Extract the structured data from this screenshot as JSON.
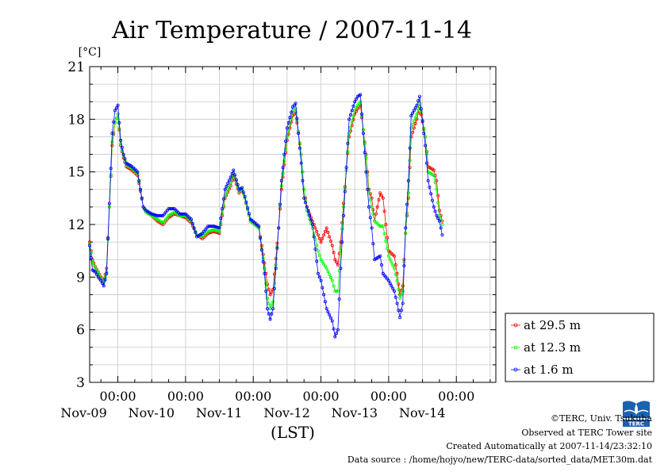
{
  "chart_data": {
    "type": "line",
    "title": "Air Temperature / 2007-11-14",
    "ylabel": "[°C]",
    "xlabel": "(LST)",
    "ylim": [
      3,
      21
    ],
    "yticks": [
      3,
      6,
      9,
      12,
      15,
      18,
      21
    ],
    "x_range_hours": [
      -10,
      134
    ],
    "x_ticks": [
      {
        "hour": 0,
        "time": "00:00",
        "date": "Nov-09"
      },
      {
        "hour": 24,
        "time": "00:00",
        "date": "Nov-10"
      },
      {
        "hour": 48,
        "time": "00:00",
        "date": "Nov-11"
      },
      {
        "hour": 72,
        "time": "00:00",
        "date": "Nov-12"
      },
      {
        "hour": 96,
        "time": "00:00",
        "date": "Nov-13"
      },
      {
        "hour": 120,
        "time": "00:00",
        "date": "Nov-14"
      }
    ],
    "grid": true,
    "legend_position": "right",
    "series": [
      {
        "name": "at 29.5 m",
        "color": "#ff0000",
        "points": [
          [
            -10,
            11.0
          ],
          [
            -9,
            10.0
          ],
          [
            -8,
            9.6
          ],
          [
            -7,
            9.3
          ],
          [
            -6,
            9.0
          ],
          [
            -5,
            8.8
          ],
          [
            -4,
            9.5
          ],
          [
            -3,
            13.0
          ],
          [
            -2,
            16.5
          ],
          [
            -1,
            17.8
          ],
          [
            0,
            18.3
          ],
          [
            1,
            16.5
          ],
          [
            2,
            15.8
          ],
          [
            3,
            15.3
          ],
          [
            5,
            15.1
          ],
          [
            7,
            14.8
          ],
          [
            9,
            13.0
          ],
          [
            10,
            12.7
          ],
          [
            12,
            12.5
          ],
          [
            14,
            12.2
          ],
          [
            16,
            12.0
          ],
          [
            18,
            12.4
          ],
          [
            20,
            12.6
          ],
          [
            22,
            12.5
          ],
          [
            24,
            12.4
          ],
          [
            26,
            12.1
          ],
          [
            28,
            11.4
          ],
          [
            30,
            11.2
          ],
          [
            32,
            11.5
          ],
          [
            34,
            11.6
          ],
          [
            36,
            11.5
          ],
          [
            38,
            13.5
          ],
          [
            40,
            14.2
          ],
          [
            41,
            14.8
          ],
          [
            43,
            13.8
          ],
          [
            44,
            14.0
          ],
          [
            45,
            13.5
          ],
          [
            47,
            12.2
          ],
          [
            50,
            11.8
          ],
          [
            52,
            9.8
          ],
          [
            53,
            8.6
          ],
          [
            54,
            8.0
          ],
          [
            55,
            8.3
          ],
          [
            57,
            11.8
          ],
          [
            58,
            14.0
          ],
          [
            60,
            16.8
          ],
          [
            62,
            18.2
          ],
          [
            63,
            18.4
          ],
          [
            65,
            16.0
          ],
          [
            66,
            14.0
          ],
          [
            67,
            13.0
          ],
          [
            69,
            12.2
          ],
          [
            71,
            11.4
          ],
          [
            72,
            11.0
          ],
          [
            74,
            11.8
          ],
          [
            76,
            10.8
          ],
          [
            77,
            10.0
          ],
          [
            78,
            9.7
          ],
          [
            79,
            11.0
          ],
          [
            80,
            13.2
          ],
          [
            82,
            17.0
          ],
          [
            84,
            18.3
          ],
          [
            85,
            18.6
          ],
          [
            86,
            18.8
          ],
          [
            88,
            16.0
          ],
          [
            89,
            14.0
          ],
          [
            90,
            13.5
          ],
          [
            91,
            12.2
          ],
          [
            93,
            13.8
          ],
          [
            94,
            13.5
          ],
          [
            96,
            10.5
          ],
          [
            98,
            10.2
          ],
          [
            99,
            9.2
          ],
          [
            100,
            8.0
          ],
          [
            101,
            8.5
          ],
          [
            102,
            11.5
          ],
          [
            103,
            13.5
          ],
          [
            104,
            17.0
          ],
          [
            106,
            18.0
          ],
          [
            107,
            18.7
          ],
          [
            109,
            17.0
          ],
          [
            110,
            15.3
          ],
          [
            112,
            15.1
          ],
          [
            113,
            14.5
          ],
          [
            114,
            12.8
          ],
          [
            115,
            12.2
          ]
        ]
      },
      {
        "name": "at 12.3 m",
        "color": "#00ff00",
        "points": [
          [
            -10,
            10.9
          ],
          [
            -9,
            9.9
          ],
          [
            -8,
            9.5
          ],
          [
            -7,
            9.2
          ],
          [
            -6,
            8.9
          ],
          [
            -5,
            8.7
          ],
          [
            -4,
            9.3
          ],
          [
            -3,
            13.0
          ],
          [
            -2,
            16.7
          ],
          [
            -1,
            17.8
          ],
          [
            0,
            18.3
          ],
          [
            1,
            16.6
          ],
          [
            2,
            15.9
          ],
          [
            3,
            15.4
          ],
          [
            5,
            15.2
          ],
          [
            7,
            14.9
          ],
          [
            9,
            13.0
          ],
          [
            10,
            12.7
          ],
          [
            12,
            12.5
          ],
          [
            14,
            12.3
          ],
          [
            16,
            12.1
          ],
          [
            18,
            12.5
          ],
          [
            20,
            12.7
          ],
          [
            22,
            12.5
          ],
          [
            24,
            12.5
          ],
          [
            26,
            12.2
          ],
          [
            28,
            11.4
          ],
          [
            30,
            11.3
          ],
          [
            32,
            11.6
          ],
          [
            34,
            11.7
          ],
          [
            36,
            11.6
          ],
          [
            38,
            13.6
          ],
          [
            40,
            14.4
          ],
          [
            41,
            14.9
          ],
          [
            43,
            13.9
          ],
          [
            44,
            14.0
          ],
          [
            45,
            13.5
          ],
          [
            47,
            12.2
          ],
          [
            50,
            11.8
          ],
          [
            52,
            9.5
          ],
          [
            53,
            7.8
          ],
          [
            54,
            7.2
          ],
          [
            55,
            7.6
          ],
          [
            57,
            11.8
          ],
          [
            58,
            14.2
          ],
          [
            60,
            17.0
          ],
          [
            62,
            18.4
          ],
          [
            63,
            18.6
          ],
          [
            65,
            16.0
          ],
          [
            66,
            14.0
          ],
          [
            67,
            12.8
          ],
          [
            69,
            11.8
          ],
          [
            71,
            10.5
          ],
          [
            72,
            10.0
          ],
          [
            74,
            9.5
          ],
          [
            76,
            8.8
          ],
          [
            77,
            8.2
          ],
          [
            78,
            8.2
          ],
          [
            79,
            10.5
          ],
          [
            80,
            13.0
          ],
          [
            82,
            17.2
          ],
          [
            84,
            18.5
          ],
          [
            85,
            18.8
          ],
          [
            86,
            19.0
          ],
          [
            88,
            15.8
          ],
          [
            89,
            13.8
          ],
          [
            90,
            13.0
          ],
          [
            91,
            12.2
          ],
          [
            93,
            11.9
          ],
          [
            94,
            11.9
          ],
          [
            96,
            10.2
          ],
          [
            98,
            9.5
          ],
          [
            99,
            8.8
          ],
          [
            100,
            7.8
          ],
          [
            101,
            8.2
          ],
          [
            102,
            11.5
          ],
          [
            103,
            13.8
          ],
          [
            104,
            17.5
          ],
          [
            106,
            18.3
          ],
          [
            107,
            18.9
          ],
          [
            109,
            17.0
          ],
          [
            110,
            15.0
          ],
          [
            112,
            14.8
          ],
          [
            113,
            14.0
          ],
          [
            114,
            12.5
          ],
          [
            115,
            12.0
          ]
        ]
      },
      {
        "name": "at 1.6 m",
        "color": "#0000ff",
        "points": [
          [
            -10,
            10.8
          ],
          [
            -9,
            9.4
          ],
          [
            -8,
            9.3
          ],
          [
            -7,
            9.0
          ],
          [
            -6,
            8.8
          ],
          [
            -5,
            8.5
          ],
          [
            -4,
            9.2
          ],
          [
            -3,
            13.2
          ],
          [
            -2,
            17.2
          ],
          [
            -1,
            18.5
          ],
          [
            0,
            18.8
          ],
          [
            1,
            16.8
          ],
          [
            2,
            16.0
          ],
          [
            3,
            15.5
          ],
          [
            5,
            15.3
          ],
          [
            7,
            15.0
          ],
          [
            9,
            13.0
          ],
          [
            10,
            12.8
          ],
          [
            12,
            12.6
          ],
          [
            14,
            12.5
          ],
          [
            16,
            12.5
          ],
          [
            18,
            12.9
          ],
          [
            20,
            12.9
          ],
          [
            22,
            12.6
          ],
          [
            24,
            12.6
          ],
          [
            26,
            12.3
          ],
          [
            28,
            11.3
          ],
          [
            30,
            11.5
          ],
          [
            32,
            11.9
          ],
          [
            34,
            11.9
          ],
          [
            36,
            11.8
          ],
          [
            38,
            14.0
          ],
          [
            40,
            14.7
          ],
          [
            41,
            15.1
          ],
          [
            43,
            14.0
          ],
          [
            44,
            14.1
          ],
          [
            45,
            13.6
          ],
          [
            47,
            12.3
          ],
          [
            50,
            11.9
          ],
          [
            52,
            9.2
          ],
          [
            53,
            7.2
          ],
          [
            54,
            6.6
          ],
          [
            55,
            7.2
          ],
          [
            57,
            11.8
          ],
          [
            58,
            14.5
          ],
          [
            60,
            17.5
          ],
          [
            62,
            18.7
          ],
          [
            63,
            18.9
          ],
          [
            65,
            15.5
          ],
          [
            66,
            13.5
          ],
          [
            67,
            13.0
          ],
          [
            69,
            12.0
          ],
          [
            71,
            9.2
          ],
          [
            72,
            8.8
          ],
          [
            74,
            7.2
          ],
          [
            76,
            6.5
          ],
          [
            77,
            5.6
          ],
          [
            78,
            6.0
          ],
          [
            79,
            9.5
          ],
          [
            80,
            12.5
          ],
          [
            82,
            18.0
          ],
          [
            84,
            19.0
          ],
          [
            85,
            19.3
          ],
          [
            86,
            19.4
          ],
          [
            88,
            15.0
          ],
          [
            89,
            13.0
          ],
          [
            90,
            11.8
          ],
          [
            91,
            10.0
          ],
          [
            93,
            10.2
          ],
          [
            94,
            9.2
          ],
          [
            96,
            8.8
          ],
          [
            98,
            8.2
          ],
          [
            99,
            7.5
          ],
          [
            100,
            6.7
          ],
          [
            101,
            7.5
          ],
          [
            102,
            11.8
          ],
          [
            103,
            14.5
          ],
          [
            104,
            18.2
          ],
          [
            106,
            18.8
          ],
          [
            107,
            19.3
          ],
          [
            109,
            16.5
          ],
          [
            110,
            14.5
          ],
          [
            112,
            13.0
          ],
          [
            113,
            12.5
          ],
          [
            114,
            12.2
          ],
          [
            115,
            11.4
          ]
        ]
      }
    ]
  },
  "credits": {
    "org": "©TERC, Univ. Tsukuba",
    "site": "Observed at TERC Tower site",
    "created": "Created Automatically at 2007-11-14/23:32:10",
    "source": "Data source : /home/hojyo/new/TERC-data/sorted_data/MET.30m.dat"
  },
  "logo": {
    "text": "TERC",
    "color": "#1a62b0",
    "icon": "terc-logo-icon"
  }
}
